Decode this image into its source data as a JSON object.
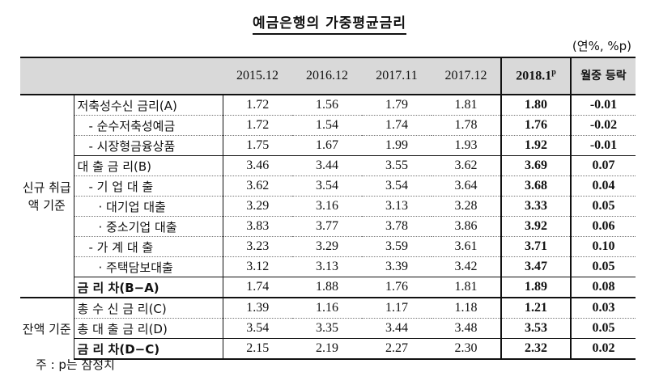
{
  "title": "예금은행의 가중평균금리",
  "unit": "(연%, %p)",
  "columns": [
    "2015.12",
    "2016.12",
    "2017.11",
    "2017.12",
    "2018.1",
    "월중 등락"
  ],
  "highlight_sup": "p",
  "groups": {
    "new": "신규 취급액 기준",
    "balance": "잔액 기준"
  },
  "rows": [
    {
      "label": "저축성수신 금리(A)",
      "values": [
        "1.72",
        "1.56",
        "1.79",
        "1.81",
        "1.80",
        "-0.01"
      ]
    },
    {
      "label": "- 순수저축성예금",
      "values": [
        "1.72",
        "1.54",
        "1.74",
        "1.78",
        "1.76",
        "-0.02"
      ]
    },
    {
      "label": "- 시장형금융상품",
      "values": [
        "1.75",
        "1.67",
        "1.99",
        "1.93",
        "1.92",
        "-0.01"
      ]
    },
    {
      "label": "대 출 금 리(B)",
      "values": [
        "3.46",
        "3.44",
        "3.55",
        "3.62",
        "3.69",
        "0.07"
      ]
    },
    {
      "label": "- 기 업 대 출",
      "values": [
        "3.62",
        "3.54",
        "3.54",
        "3.64",
        "3.68",
        "0.04"
      ]
    },
    {
      "label": "· 대기업 대출",
      "values": [
        "3.29",
        "3.16",
        "3.13",
        "3.28",
        "3.33",
        "0.05"
      ]
    },
    {
      "label": "· 중소기업 대출",
      "values": [
        "3.83",
        "3.77",
        "3.78",
        "3.86",
        "3.92",
        "0.06"
      ]
    },
    {
      "label": "- 가 계 대 출",
      "values": [
        "3.23",
        "3.29",
        "3.59",
        "3.61",
        "3.71",
        "0.10"
      ]
    },
    {
      "label": "· 주택담보대출",
      "values": [
        "3.12",
        "3.13",
        "3.39",
        "3.42",
        "3.47",
        "0.05"
      ]
    },
    {
      "label": "금 리 차(B−A)",
      "values": [
        "1.74",
        "1.88",
        "1.76",
        "1.81",
        "1.89",
        "0.08"
      ]
    },
    {
      "label": "총 수 신 금 리(C)",
      "values": [
        "1.39",
        "1.16",
        "1.17",
        "1.18",
        "1.21",
        "0.03"
      ]
    },
    {
      "label": "총 대 출 금 리(D)",
      "values": [
        "3.54",
        "3.35",
        "3.44",
        "3.48",
        "3.53",
        "0.05"
      ]
    },
    {
      "label": "금 리 차(D−C)",
      "values": [
        "2.15",
        "2.19",
        "2.27",
        "2.30",
        "2.32",
        "0.02"
      ]
    }
  ],
  "note": "주 : p는 잠정치"
}
